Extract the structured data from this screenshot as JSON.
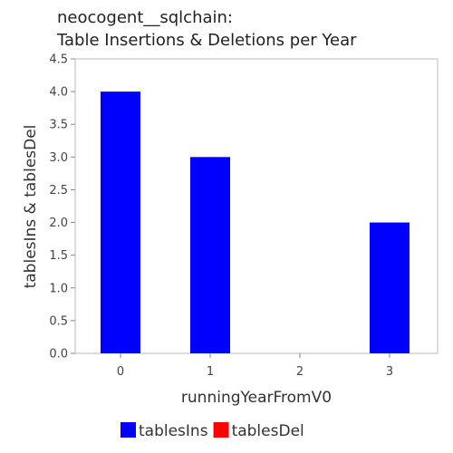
{
  "chart_data": {
    "type": "bar",
    "title_lines": [
      "neocogent__sqlchain:",
      "Table Insertions & Deletions per Year"
    ],
    "xlabel": "runningYearFromV0",
    "ylabel": "tablesIns & tablesDel",
    "categories": [
      "0",
      "1",
      "2",
      "3"
    ],
    "series": [
      {
        "name": "tablesIns",
        "color": "#0000ff",
        "values": [
          4.0,
          3.0,
          0.0,
          2.0
        ]
      },
      {
        "name": "tablesDel",
        "color": "#ff0000",
        "values": [
          0.0,
          0.0,
          0.0,
          0.0
        ]
      }
    ],
    "ylim": [
      0,
      4.5
    ],
    "yticks": [
      "0.0",
      "0.5",
      "1.0",
      "1.5",
      "2.0",
      "2.5",
      "3.0",
      "3.5",
      "4.0",
      "4.5"
    ],
    "grid": false,
    "legend_position": "bottom"
  }
}
